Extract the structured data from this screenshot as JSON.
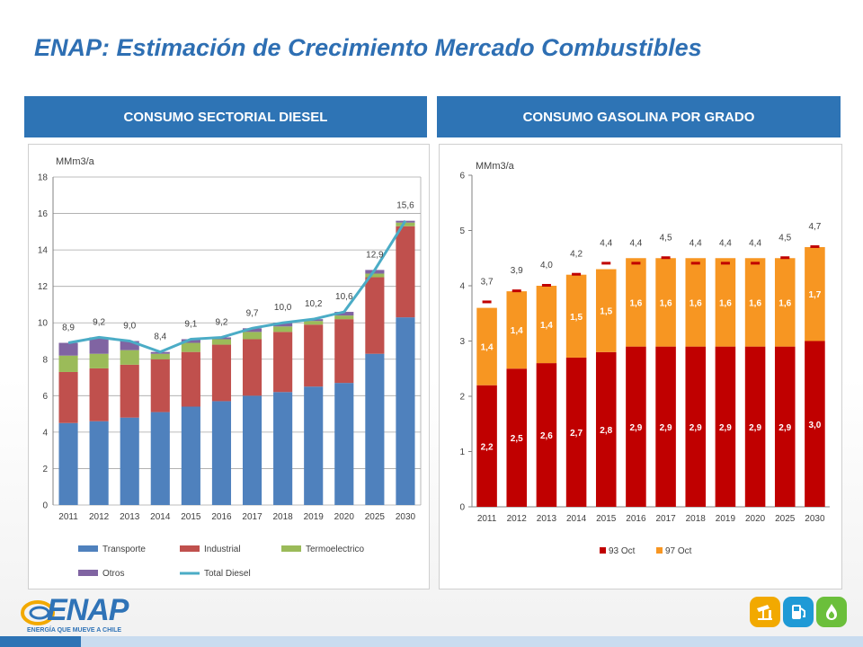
{
  "title": "ENAP: Estimación de Crecimiento Mercado Combustibles",
  "headers": {
    "left": "CONSUMO SECTORIAL DIESEL",
    "right": "CONSUMO GASOLINA POR GRADO"
  },
  "logo": {
    "text": "ENAP",
    "tagline": "ENERGÍA QUE MUEVE A CHILE"
  },
  "icons": [
    "oil-pump-icon",
    "fuel-pump-icon",
    "flame-icon"
  ],
  "chart_data": [
    {
      "type": "bar",
      "stacked": true,
      "unit_label": "MMm3/a",
      "categories": [
        "2011",
        "2012",
        "2013",
        "2014",
        "2015",
        "2016",
        "2017",
        "2018",
        "2019",
        "2020",
        "2025",
        "2030"
      ],
      "ylim": [
        0,
        18
      ],
      "yticks": [
        0,
        2,
        4,
        6,
        8,
        10,
        12,
        14,
        16,
        18
      ],
      "grid": true,
      "legend_position": "bottom",
      "series": [
        {
          "name": "Transporte",
          "color": "#4f81bd",
          "values": [
            4.5,
            4.6,
            4.8,
            5.1,
            5.4,
            5.7,
            6.0,
            6.2,
            6.5,
            6.7,
            8.3,
            10.3
          ]
        },
        {
          "name": "Industrial",
          "color": "#c0504d",
          "values": [
            2.8,
            2.9,
            2.9,
            2.9,
            3.0,
            3.1,
            3.1,
            3.3,
            3.4,
            3.5,
            4.2,
            5.0
          ]
        },
        {
          "name": "Termoelectrico",
          "color": "#9bbb59",
          "values": [
            0.9,
            0.8,
            0.8,
            0.3,
            0.5,
            0.3,
            0.4,
            0.3,
            0.2,
            0.2,
            0.2,
            0.2
          ]
        },
        {
          "name": "Otros",
          "color": "#8064a2",
          "values": [
            0.7,
            0.9,
            0.5,
            0.1,
            0.2,
            0.1,
            0.2,
            0.2,
            0.1,
            0.2,
            0.2,
            0.1
          ]
        }
      ],
      "line": {
        "name": "Total Diesel",
        "color": "#4bacc6",
        "values": [
          8.9,
          9.2,
          9.0,
          8.4,
          9.1,
          9.2,
          9.7,
          10.0,
          10.2,
          10.6,
          12.9,
          15.6
        ],
        "labels": [
          "8,9",
          "9,2",
          "9,0",
          "8,4",
          "9,1",
          "9,2",
          "9,7",
          "10,0",
          "10,2",
          "10,6",
          "12,9",
          "15,6"
        ]
      }
    },
    {
      "type": "bar",
      "stacked": true,
      "unit_label": "MMm3/a",
      "categories": [
        "2011",
        "2012",
        "2013",
        "2014",
        "2015",
        "2016",
        "2017",
        "2018",
        "2019",
        "2020",
        "2025",
        "2030"
      ],
      "ylim": [
        0,
        6
      ],
      "yticks": [
        0,
        1,
        2,
        3,
        4,
        5,
        6
      ],
      "grid": false,
      "legend_position": "bottom",
      "series": [
        {
          "name": "93 Oct",
          "color": "#c00000",
          "values": [
            2.2,
            2.5,
            2.6,
            2.7,
            2.8,
            2.9,
            2.9,
            2.9,
            2.9,
            2.9,
            2.9,
            3.0
          ],
          "labels": [
            "2,2",
            "2,5",
            "2,6",
            "2,7",
            "2,8",
            "2,9",
            "2,9",
            "2,9",
            "2,9",
            "2,9",
            "2,9",
            "3,0"
          ]
        },
        {
          "name": "97 Oct",
          "color": "#f79622",
          "values": [
            1.4,
            1.4,
            1.4,
            1.5,
            1.5,
            1.6,
            1.6,
            1.6,
            1.6,
            1.6,
            1.6,
            1.7
          ],
          "labels": [
            "1,4",
            "1,4",
            "1,4",
            "1,5",
            "1,5",
            "1,6",
            "1,6",
            "1,6",
            "1,6",
            "1,6",
            "1,6",
            "1,7"
          ]
        }
      ],
      "totals": {
        "values": [
          3.7,
          3.9,
          4.0,
          4.2,
          4.4,
          4.4,
          4.5,
          4.4,
          4.4,
          4.4,
          4.5,
          4.7
        ],
        "labels": [
          "3,7",
          "3,9",
          "4,0",
          "4,2",
          "4,4",
          "4,4",
          "4,5",
          "4,4",
          "4,4",
          "4,4",
          "4,5",
          "4,7"
        ]
      }
    }
  ]
}
